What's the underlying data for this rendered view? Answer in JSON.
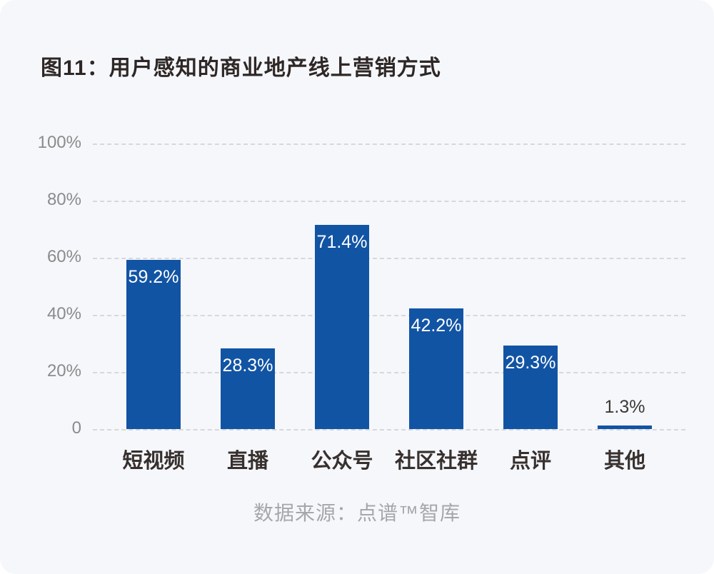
{
  "title": "图11：用户感知的商业地产线上营销方式",
  "footer": {
    "source": "数据来源：点谱™智库"
  },
  "colors": {
    "bar": "#1254a4",
    "panel_background": "#f5f7fb",
    "gridline": "#d7d8da",
    "value_label_inside": "#ffffff",
    "value_label_above": "#3d3a38",
    "axis_label": "#8b8b8b",
    "category_label": "#37302e",
    "title_text": "#2e2725",
    "source_text": "#a6a7a9"
  },
  "chart_data": {
    "type": "bar",
    "title": "图11：用户感知的商业地产线上营销方式",
    "categories": [
      "短视频",
      "直播",
      "公众号",
      "社区社群",
      "点评",
      "其他"
    ],
    "values": [
      59.2,
      28.3,
      71.4,
      42.2,
      29.3,
      1.3
    ],
    "value_labels": [
      "59.2%",
      "28.3%",
      "71.4%",
      "42.2%",
      "29.3%",
      "1.3%"
    ],
    "xlabel": "",
    "ylabel": "",
    "ylim": [
      0,
      100
    ],
    "y_ticks": [
      "100%",
      "80%",
      "60%",
      "40%",
      "20%",
      "0"
    ],
    "grid": "horizontal-dashed",
    "legend": "none",
    "bar_color": "#1254a4"
  }
}
